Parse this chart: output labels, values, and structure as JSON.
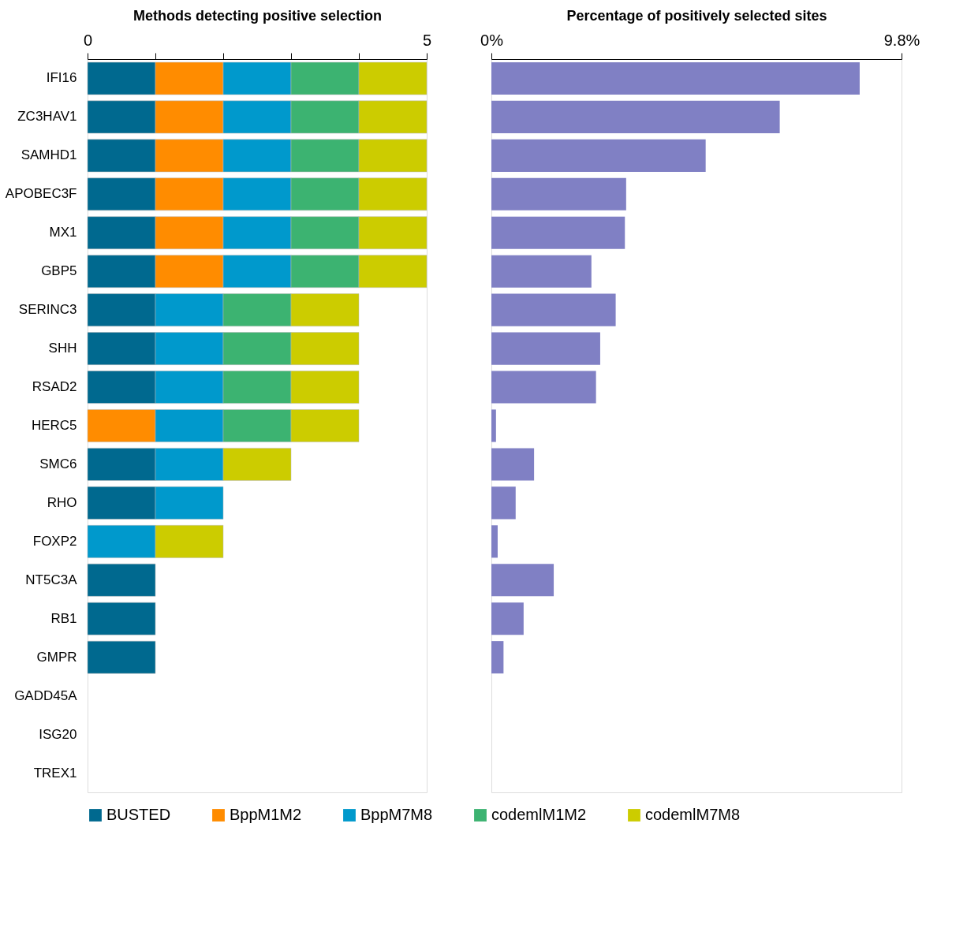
{
  "chart_data": [
    {
      "type": "bar",
      "orientation": "horizontal",
      "stacked": true,
      "xlabel": "Methods detecting positive selection",
      "categories": [
        "IFI16",
        "ZC3HAV1",
        "SAMHD1",
        "APOBEC3F",
        "MX1",
        "GBP5",
        "SERINC3",
        "SHH",
        "RSAD2",
        "HERC5",
        "SMC6",
        "RHO",
        "FOXP2",
        "NT5C3A",
        "RB1",
        "GMPR",
        "GADD45A",
        "ISG20",
        "TREX1"
      ],
      "series": [
        {
          "name": "BUSTED",
          "color": "#00698f",
          "values": [
            1,
            1,
            1,
            1,
            1,
            1,
            1,
            1,
            1,
            null,
            1,
            1,
            null,
            1,
            1,
            1,
            null,
            null,
            null
          ]
        },
        {
          "name": "BppM1M2",
          "color": "#ff8c00",
          "values": [
            1,
            1,
            1,
            1,
            1,
            1,
            null,
            null,
            null,
            1,
            null,
            null,
            null,
            null,
            null,
            null,
            null,
            null,
            null
          ]
        },
        {
          "name": "BppM7M8",
          "color": "#0099cc",
          "values": [
            1,
            1,
            1,
            1,
            1,
            1,
            1,
            1,
            1,
            1,
            1,
            1,
            1,
            null,
            null,
            null,
            null,
            null,
            null
          ]
        },
        {
          "name": "codemlM1M2",
          "color": "#3cb371",
          "values": [
            1,
            1,
            1,
            1,
            1,
            1,
            1,
            1,
            1,
            1,
            null,
            null,
            null,
            null,
            null,
            null,
            null,
            null,
            null
          ]
        },
        {
          "name": "codemlM7M8",
          "color": "#cccc00",
          "values": [
            1,
            1,
            1,
            1,
            1,
            1,
            1,
            1,
            1,
            1,
            1,
            null,
            1,
            null,
            null,
            null,
            null,
            null,
            null
          ]
        }
      ],
      "xlim": [
        0,
        5
      ],
      "xticks": [
        0,
        {
          "value": 1,
          "label": null
        },
        {
          "value": 2,
          "label": null
        },
        {
          "value": 3,
          "label": null
        },
        {
          "value": 4,
          "label": null
        },
        5
      ],
      "legend": "bottom",
      "grid": false
    },
    {
      "type": "bar",
      "orientation": "horizontal",
      "xlabel": "Percentage of positively selected sites",
      "categories": [
        null,
        null,
        null,
        null,
        null,
        null,
        null,
        null,
        null,
        null,
        null,
        null,
        null,
        null,
        null,
        null,
        null,
        null,
        null
      ],
      "values": [
        8.8,
        6.89,
        5.12,
        3.22,
        3.19,
        2.39,
        2.97,
        2.6,
        2.5,
        0.11,
        1.02,
        0.58,
        0.15,
        1.49,
        0.77,
        0.29,
        null,
        null,
        null
      ],
      "color": "#8080c4",
      "xlim": [
        0,
        9.8
      ],
      "xticks": [
        {
          "value": 0,
          "label": "0%"
        },
        {
          "value": 9.8,
          "label": "9.8%"
        }
      ],
      "tick_labels": "x",
      "grid": false
    }
  ]
}
